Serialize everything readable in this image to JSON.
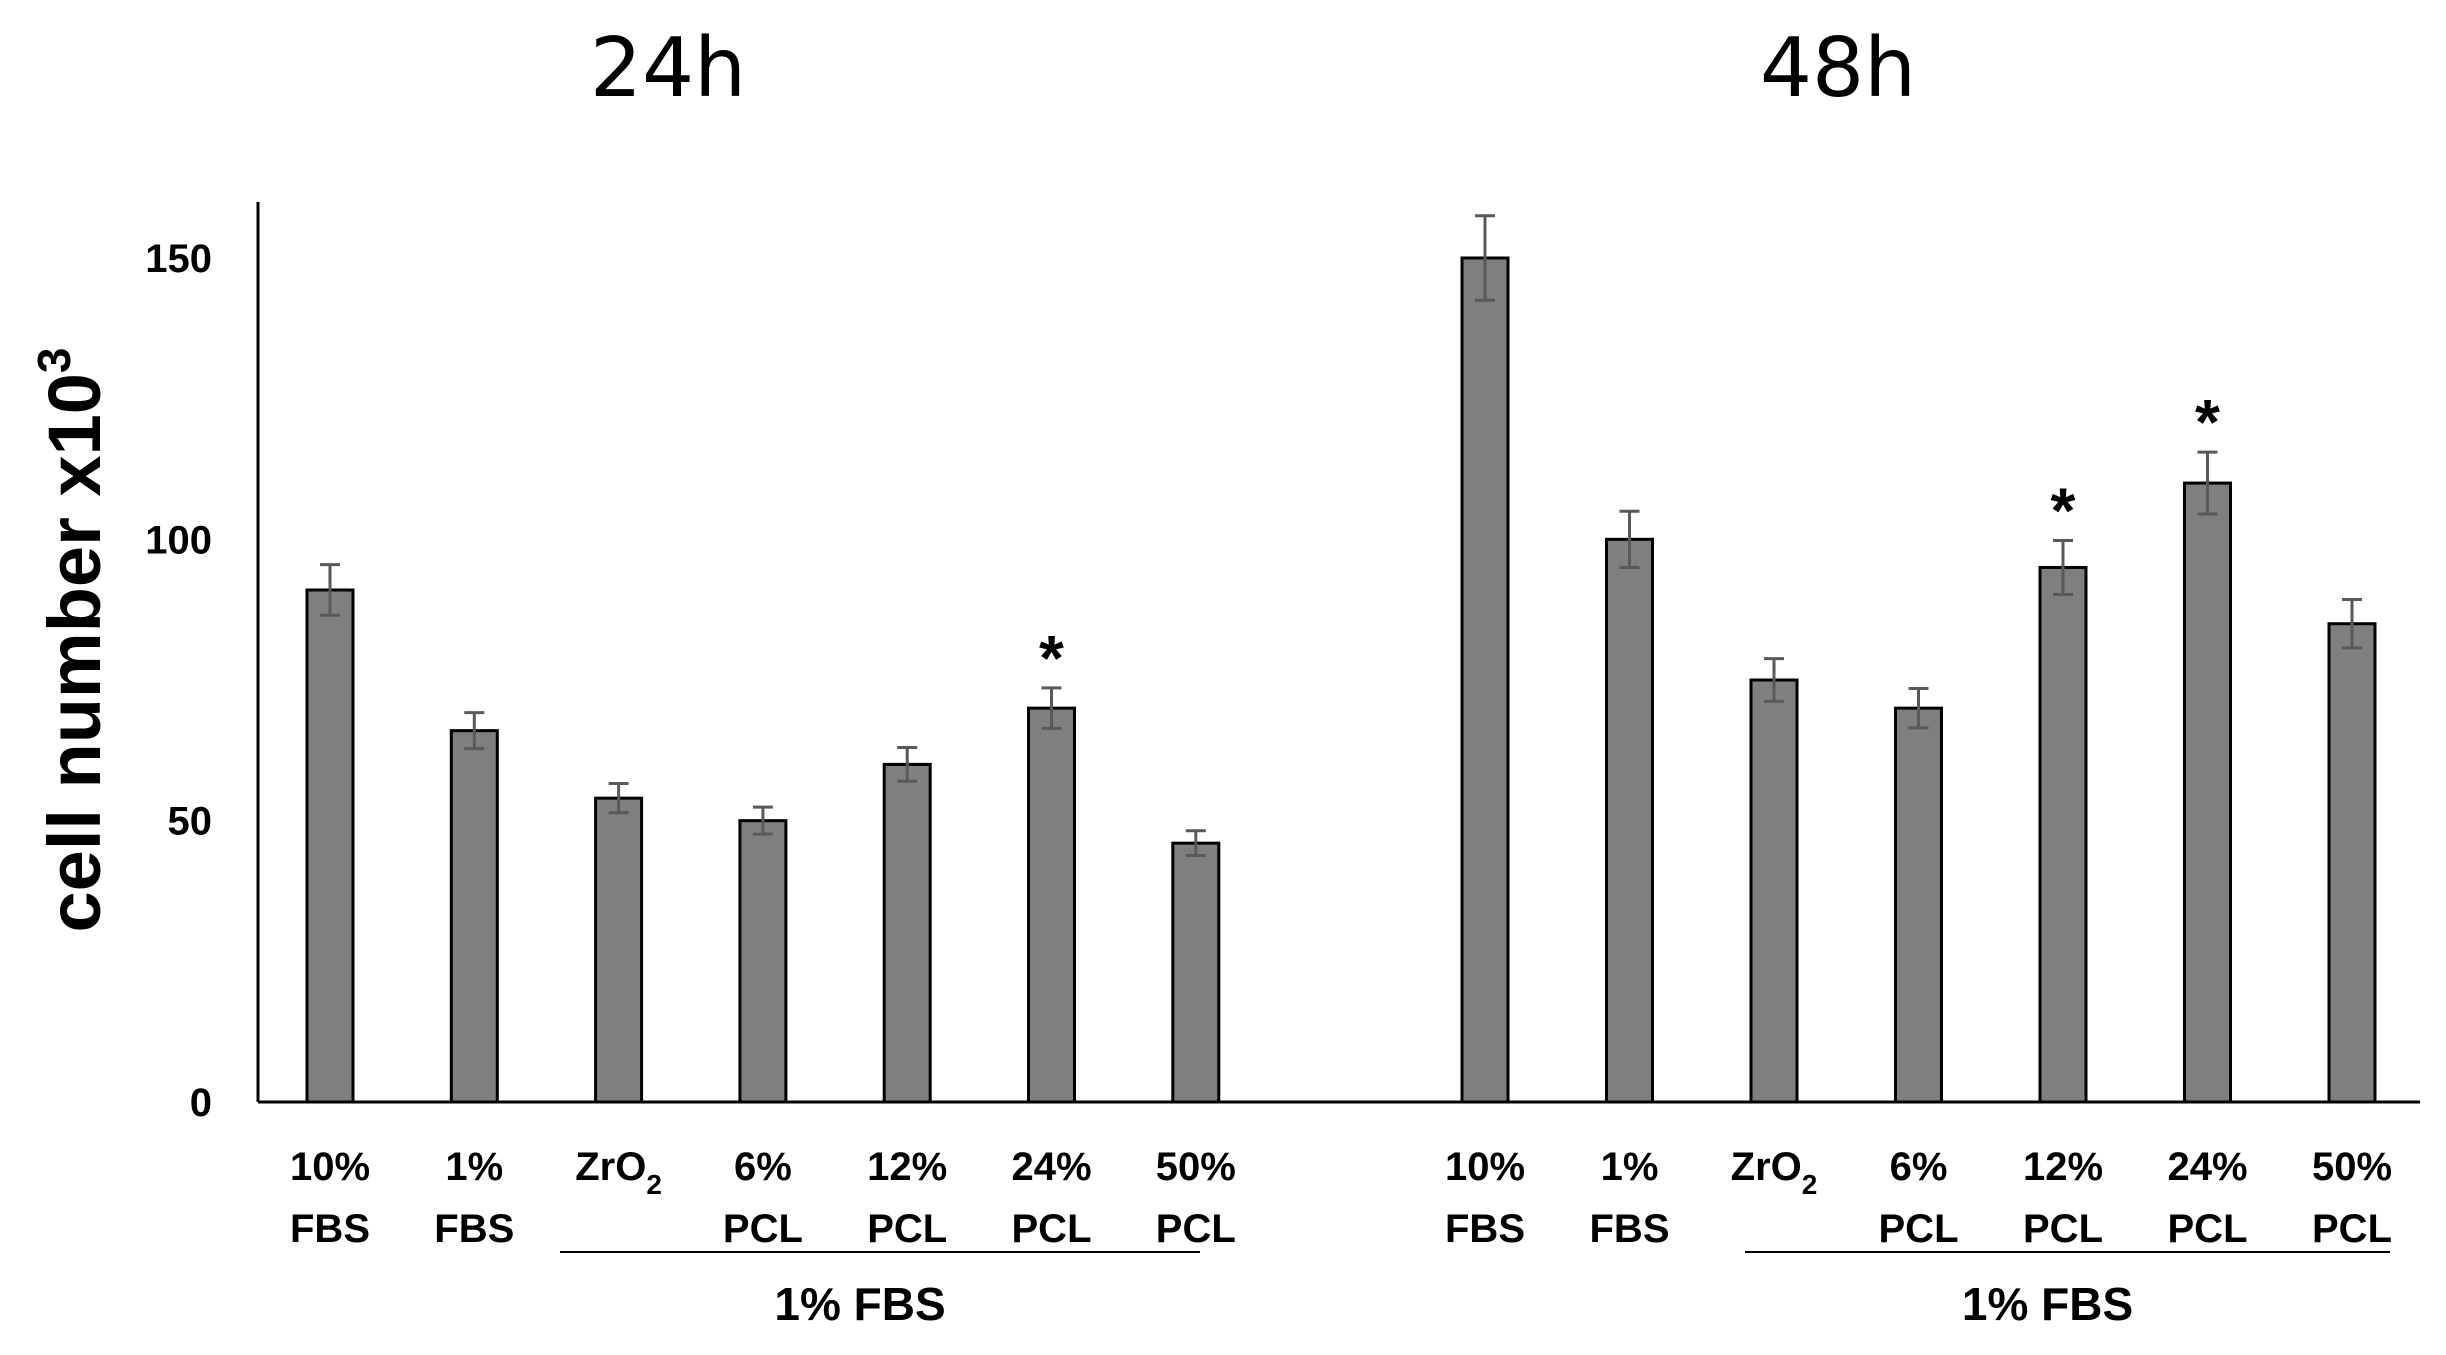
{
  "chart_data": {
    "type": "bar",
    "ylabel": "cell number x10",
    "ylabel_superscript": "3",
    "ylim": [
      0,
      160
    ],
    "yticks": [
      0,
      50,
      100,
      150
    ],
    "grid": false,
    "colors": {
      "bar_fill": "#7f7f7f",
      "bar_edge": "#000000",
      "error_bar": "#595959"
    },
    "groups": [
      {
        "title": "24h",
        "bracket_label": "1% FBS",
        "categories": [
          {
            "line1": "10%",
            "line2": "FBS"
          },
          {
            "line1": "1%",
            "line2": "FBS"
          },
          {
            "line1": "ZrO",
            "line1_sub": "2",
            "line2": ""
          },
          {
            "line1": "6%",
            "line2": "PCL"
          },
          {
            "line1": "12%",
            "line2": "PCL"
          },
          {
            "line1": "24%",
            "line2": "PCL"
          },
          {
            "line1": "50%",
            "line2": "PCL"
          }
        ],
        "values": [
          91,
          66,
          54,
          50,
          60,
          70,
          46
        ],
        "errors": [
          4.5,
          3.2,
          2.6,
          2.4,
          3.0,
          3.6,
          2.2
        ],
        "significance": [
          "",
          "",
          "",
          "",
          "",
          "*",
          ""
        ]
      },
      {
        "title": "48h",
        "bracket_label": "1% FBS",
        "categories": [
          {
            "line1": "10%",
            "line2": "FBS"
          },
          {
            "line1": "1%",
            "line2": "FBS"
          },
          {
            "line1": "ZrO",
            "line1_sub": "2",
            "line2": ""
          },
          {
            "line1": "6%",
            "line2": "PCL"
          },
          {
            "line1": "12%",
            "line2": "PCL"
          },
          {
            "line1": "24%",
            "line2": "PCL"
          },
          {
            "line1": "50%",
            "line2": "PCL"
          }
        ],
        "values": [
          150,
          100,
          75,
          70,
          95,
          110,
          85
        ],
        "errors": [
          7.5,
          5.0,
          3.8,
          3.5,
          4.8,
          5.5,
          4.3
        ],
        "significance": [
          "",
          "",
          "",
          "",
          "*",
          "*",
          ""
        ]
      }
    ]
  }
}
